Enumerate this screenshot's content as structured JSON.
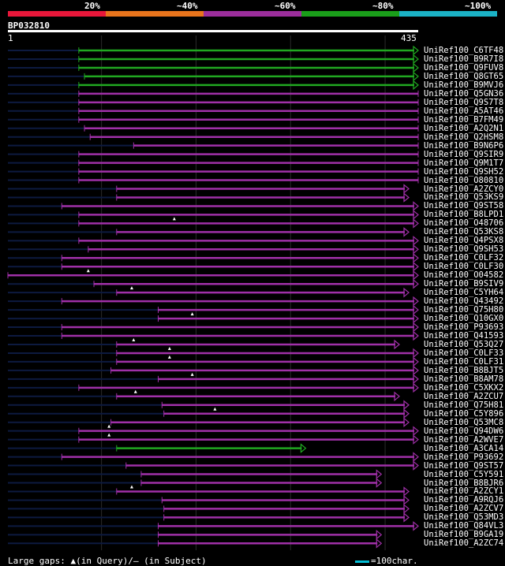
{
  "query": {
    "id": "BP032810",
    "start": "1",
    "end": "435",
    "length": 435
  },
  "scale": {
    "segments": [
      {
        "label": "20%",
        "color": "#e8173a"
      },
      {
        "label": "~40%",
        "color": "#e8741c"
      },
      {
        "label": "~60%",
        "color": "#9c2e9c"
      },
      {
        "label": "~80%",
        "color": "#1a9e1a"
      },
      {
        "label": "~100%",
        "color": "#1bb2c6"
      }
    ]
  },
  "colors": {
    "purple": "#a030a8",
    "green": "#21a821",
    "unaligned": "#0d1a40",
    "grid": "#2a2a2a",
    "gap_marker": "#ffffff"
  },
  "hits": [
    {
      "label": "UniRef100_C6TF48",
      "start": 76,
      "end": 435,
      "color": "green",
      "arrow": true,
      "gaps": []
    },
    {
      "label": "UniRef100_B9R7I8",
      "start": 76,
      "end": 435,
      "color": "green",
      "arrow": true,
      "gaps": []
    },
    {
      "label": "UniRef100_Q9FUV8",
      "start": 76,
      "end": 435,
      "color": "green",
      "arrow": true,
      "gaps": []
    },
    {
      "label": "UniRef100_Q8GT65",
      "start": 82,
      "end": 435,
      "color": "green",
      "arrow": true,
      "gaps": []
    },
    {
      "label": "UniRef100_B9MVJ6",
      "start": 76,
      "end": 435,
      "color": "green",
      "arrow": true,
      "gaps": []
    },
    {
      "label": "UniRef100_Q5GN36",
      "start": 76,
      "end": 435,
      "color": "purple",
      "arrow": false,
      "gaps": []
    },
    {
      "label": "UniRef100_Q9S7T8",
      "start": 76,
      "end": 435,
      "color": "purple",
      "arrow": false,
      "gaps": []
    },
    {
      "label": "UniRef100_A5AT46",
      "start": 76,
      "end": 435,
      "color": "purple",
      "arrow": false,
      "gaps": []
    },
    {
      "label": "UniRef100_B7FM49",
      "start": 76,
      "end": 435,
      "color": "purple",
      "arrow": false,
      "gaps": []
    },
    {
      "label": "UniRef100_A2Q2N1",
      "start": 82,
      "end": 435,
      "color": "purple",
      "arrow": false,
      "gaps": []
    },
    {
      "label": "UniRef100_Q2HSM8",
      "start": 88,
      "end": 435,
      "color": "purple",
      "arrow": false,
      "gaps": []
    },
    {
      "label": "UniRef100_B9N6P6",
      "start": 134,
      "end": 435,
      "color": "purple",
      "arrow": false,
      "gaps": []
    },
    {
      "label": "UniRef100_Q9SIR9",
      "start": 76,
      "end": 435,
      "color": "purple",
      "arrow": false,
      "gaps": []
    },
    {
      "label": "UniRef100_Q9M1T7",
      "start": 76,
      "end": 435,
      "color": "purple",
      "arrow": false,
      "gaps": []
    },
    {
      "label": "UniRef100_Q9SH52",
      "start": 76,
      "end": 435,
      "color": "purple",
      "arrow": false,
      "gaps": []
    },
    {
      "label": "UniRef100_O80810",
      "start": 76,
      "end": 435,
      "color": "purple",
      "arrow": false,
      "gaps": []
    },
    {
      "label": "UniRef100_A2ZCY0",
      "start": 116,
      "end": 425,
      "color": "purple",
      "arrow": true,
      "gaps": []
    },
    {
      "label": "UniRef100_Q53KS9",
      "start": 116,
      "end": 425,
      "color": "purple",
      "arrow": true,
      "gaps": []
    },
    {
      "label": "UniRef100_Q9ST58",
      "start": 58,
      "end": 435,
      "color": "purple",
      "arrow": true,
      "gaps": []
    },
    {
      "label": "UniRef100_B8LPD1",
      "start": 76,
      "end": 435,
      "color": "purple",
      "arrow": true,
      "gaps": []
    },
    {
      "label": "UniRef100_O48706",
      "start": 76,
      "end": 435,
      "color": "purple",
      "arrow": true,
      "gaps": [
        177
      ]
    },
    {
      "label": "UniRef100_Q53KS8",
      "start": 116,
      "end": 425,
      "color": "purple",
      "arrow": true,
      "gaps": []
    },
    {
      "label": "UniRef100_Q4PSX8",
      "start": 76,
      "end": 435,
      "color": "purple",
      "arrow": true,
      "gaps": []
    },
    {
      "label": "UniRef100_Q9SH53",
      "start": 86,
      "end": 435,
      "color": "purple",
      "arrow": true,
      "gaps": []
    },
    {
      "label": "UniRef100_C0LF32",
      "start": 58,
      "end": 435,
      "color": "purple",
      "arrow": true,
      "gaps": []
    },
    {
      "label": "UniRef100_C0LF30",
      "start": 58,
      "end": 435,
      "color": "purple",
      "arrow": true,
      "gaps": []
    },
    {
      "label": "UniRef100_O04582",
      "start": 1,
      "end": 435,
      "color": "purple",
      "arrow": true,
      "gaps": [
        86
      ]
    },
    {
      "label": "UniRef100_B9SIV9",
      "start": 92,
      "end": 435,
      "color": "purple",
      "arrow": true,
      "gaps": []
    },
    {
      "label": "UniRef100_C5YH64",
      "start": 116,
      "end": 425,
      "color": "purple",
      "arrow": true,
      "gaps": [
        132
      ]
    },
    {
      "label": "UniRef100_Q43492",
      "start": 58,
      "end": 435,
      "color": "purple",
      "arrow": true,
      "gaps": []
    },
    {
      "label": "UniRef100_Q75H80",
      "start": 160,
      "end": 435,
      "color": "purple",
      "arrow": true,
      "gaps": []
    },
    {
      "label": "UniRef100_Q10GX0",
      "start": 160,
      "end": 435,
      "color": "purple",
      "arrow": true,
      "gaps": [
        196
      ]
    },
    {
      "label": "UniRef100_P93693",
      "start": 58,
      "end": 435,
      "color": "purple",
      "arrow": true,
      "gaps": []
    },
    {
      "label": "UniRef100_Q41593",
      "start": 58,
      "end": 435,
      "color": "purple",
      "arrow": true,
      "gaps": []
    },
    {
      "label": "UniRef100_Q53Q27",
      "start": 116,
      "end": 415,
      "color": "purple",
      "arrow": true,
      "gaps": [
        134
      ]
    },
    {
      "label": "UniRef100_C0LF33",
      "start": 116,
      "end": 435,
      "color": "purple",
      "arrow": true,
      "gaps": [
        172
      ]
    },
    {
      "label": "UniRef100_C0LF31",
      "start": 116,
      "end": 435,
      "color": "purple",
      "arrow": true,
      "gaps": [
        172
      ]
    },
    {
      "label": "UniRef100_B8BJT5",
      "start": 110,
      "end": 435,
      "color": "purple",
      "arrow": true,
      "gaps": []
    },
    {
      "label": "UniRef100_B8AM78",
      "start": 160,
      "end": 435,
      "color": "purple",
      "arrow": true,
      "gaps": [
        196
      ]
    },
    {
      "label": "UniRef100_C5XKX2",
      "start": 76,
      "end": 435,
      "color": "purple",
      "arrow": true,
      "gaps": []
    },
    {
      "label": "UniRef100_A2ZCU7",
      "start": 116,
      "end": 415,
      "color": "purple",
      "arrow": true,
      "gaps": [
        136
      ]
    },
    {
      "label": "UniRef100_Q75H81",
      "start": 164,
      "end": 425,
      "color": "purple",
      "arrow": true,
      "gaps": []
    },
    {
      "label": "UniRef100_C5Y896",
      "start": 166,
      "end": 425,
      "color": "purple",
      "arrow": true,
      "gaps": [
        220
      ]
    },
    {
      "label": "UniRef100_Q53MC8",
      "start": 110,
      "end": 425,
      "color": "purple",
      "arrow": true,
      "gaps": []
    },
    {
      "label": "UniRef100_Q94DW6",
      "start": 76,
      "end": 435,
      "color": "purple",
      "arrow": true,
      "gaps": [
        108
      ]
    },
    {
      "label": "UniRef100_A2WVE7",
      "start": 76,
      "end": 435,
      "color": "purple",
      "arrow": true,
      "gaps": [
        108
      ]
    },
    {
      "label": "UniRef100_A3CA14",
      "start": 116,
      "end": 316,
      "color": "green",
      "arrow": true,
      "gaps": []
    },
    {
      "label": "UniRef100_P93692",
      "start": 58,
      "end": 435,
      "color": "purple",
      "arrow": true,
      "gaps": []
    },
    {
      "label": "UniRef100_Q9ST57",
      "start": 126,
      "end": 435,
      "color": "purple",
      "arrow": true,
      "gaps": []
    },
    {
      "label": "UniRef100_C5Y591",
      "start": 142,
      "end": 396,
      "color": "purple",
      "arrow": true,
      "gaps": []
    },
    {
      "label": "UniRef100_B8BJR6",
      "start": 142,
      "end": 396,
      "color": "purple",
      "arrow": true,
      "gaps": []
    },
    {
      "label": "UniRef100_A2ZCY1",
      "start": 116,
      "end": 425,
      "color": "purple",
      "arrow": true,
      "gaps": [
        132
      ]
    },
    {
      "label": "UniRef100_A9RQJ6",
      "start": 164,
      "end": 425,
      "color": "purple",
      "arrow": true,
      "gaps": []
    },
    {
      "label": "UniRef100_A2ZCV7",
      "start": 166,
      "end": 425,
      "color": "purple",
      "arrow": true,
      "gaps": []
    },
    {
      "label": "UniRef100_Q53MD3",
      "start": 166,
      "end": 425,
      "color": "purple",
      "arrow": true,
      "gaps": []
    },
    {
      "label": "UniRef100_Q84VL3",
      "start": 160,
      "end": 435,
      "color": "purple",
      "arrow": true,
      "gaps": []
    },
    {
      "label": "UniRef100_B9GA19",
      "start": 160,
      "end": 396,
      "color": "purple",
      "arrow": true,
      "gaps": []
    },
    {
      "label": "UniRef100_A2ZC74",
      "start": 160,
      "end": 396,
      "color": "purple",
      "arrow": true,
      "gaps": []
    }
  ],
  "legend": {
    "gaps_text": "Large gaps: ▲(in Query)/– (in Subject)",
    "scale_text": "=100char."
  }
}
